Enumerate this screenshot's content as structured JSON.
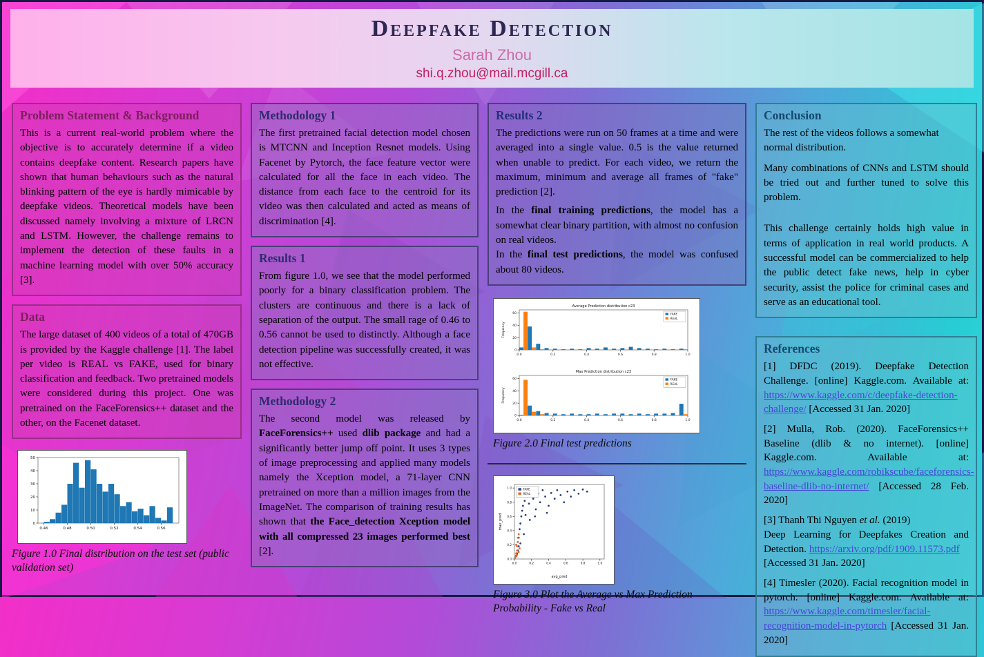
{
  "header": {
    "title": "Deepfake Detection",
    "author": "Sarah Zhou",
    "email": "shi.q.zhou@mail.mcgill.ca"
  },
  "panels": {
    "problem": {
      "title": "Problem Statement & Background",
      "body": "This is a current real-world problem where the objective is to accurately determine if a video contains deepfake content. Research papers have shown that human behaviours such as the natural blinking pattern of the eye is hardly mimicable by deepfake videos. Theoretical models have been discussed namely involving a mixture of LRCN and LSTM. However, the challenge remains to implement the detection of these faults in a machine learning model with over 50% accuracy [3]."
    },
    "data": {
      "title": "Data",
      "body": "The large dataset of 400 videos of a total of 470GB is provided by the Kaggle challenge [1]. The label per video is REAL vs FAKE, used for binary classification and feedback. Two pretrained models were considered during this project. One was pretrained on the FaceForensics++ dataset and the other, on the Facenet dataset."
    },
    "methodology1": {
      "title": "Methodology 1",
      "body": "The first pretrained facial detection model chosen is MTCNN and Inception Resnet models. Using Facenet by Pytorch, the face feature vector were calculated for all the face in each video. The distance from each face to the centroid for its video was then calculated and acted as means of discrimination [4]."
    },
    "results1": {
      "title": "Results 1",
      "body": "From figure 1.0, we see that the model performed poorly for a binary classification problem. The clusters are continuous and there is a lack of separation of the output. The small rage of 0.46 to 0.56 cannot be used to distinctly. Although a face detection pipeline was successfully created, it was not effective."
    },
    "methodology2": {
      "title": "Methodology 2",
      "segs": [
        {
          "t": "The second model was released by "
        },
        {
          "t": "FaceForensics++",
          "b": true
        },
        {
          "t": " used "
        },
        {
          "t": "dlib package",
          "b": true
        },
        {
          "t": " and had a significantly better jump off point. It uses 3 types of image preprocessing and applied many models namely the Xception model, a 71-layer CNN pretrained on more than a million images from the ImageNet. The comparison of training results has shown that "
        },
        {
          "t": "the Face_detection Xception model with all compressed 23 images performed best",
          "b": true
        },
        {
          "t": " [2]."
        }
      ]
    },
    "results2": {
      "title": "Results 2",
      "paras": [
        [
          {
            "t": "The predictions were run on 50 frames at a time and were averaged into a single value. 0.5 is the value returned when unable to predict. For each video, we return the maximum, minimum and average all frames of \"fake\" prediction [2]."
          }
        ],
        [
          {
            "t": "In the "
          },
          {
            "t": "final training predictions",
            "b": true
          },
          {
            "t": ", the model has a somewhat clear binary partition, with almost no confusion on real videos."
          }
        ],
        [
          {
            "t": "In the "
          },
          {
            "t": "final test predictions",
            "b": true
          },
          {
            "t": ", the model was confused about 80 videos."
          }
        ]
      ]
    },
    "conclusion": {
      "title": "Conclusion",
      "paras": [
        "The rest of the videos follows a somewhat normal distribution.",
        "Many combinations of CNNs and LSTM should be tried out and further tuned to solve this problem.",
        "This challenge certainly holds high value in terms of application in real world products. A successful model can be commercialized to help the public detect fake news, help in cyber security, assist the police for criminal cases and serve as an educational tool."
      ]
    },
    "references": {
      "title": "References",
      "items": [
        [
          {
            "t": "[1] DFDC (2019). Deepfake Detection Challenge. [online] Kaggle.com. Available at: "
          },
          {
            "t": "https://www.kaggle.com/c/deepfake-detection-challenge/",
            "link": true
          },
          {
            "t": " [Accessed 31 Jan. 2020]"
          }
        ],
        [
          {
            "t": "[2] Mulla, Rob. (2020). FaceForensics++ Baseline (dlib & no internet). [online] Kaggle.com. Available at: "
          },
          {
            "t": "https://www.kaggle.com/robikscube/faceforensics-baseline-dlib-no-internet/",
            "link": true
          },
          {
            "t": " [Accessed 28 Feb. 2020]"
          }
        ],
        [
          {
            "t": "[3] Thanh Thi Nguyen "
          },
          {
            "t": "et al.",
            "i": true
          },
          {
            "t": " (2019)"
          },
          {
            "br": true
          },
          {
            "t": "Deep Learning for Deepfakes Creation and Detection. "
          },
          {
            "t": "https://arxiv.org/pdf/1909.11573.pdf",
            "link": true
          },
          {
            "br": true
          },
          {
            "t": "[Accessed 31 Jan. 2020]"
          }
        ],
        [
          {
            "t": "[4] Timesler (2020). Facial recognition model in pytorch. [online] Kaggle.com. Available at: "
          },
          {
            "t": "https://www.kaggle.com/timesler/facial-recognition-model-in-pytorch",
            "link": true
          },
          {
            "t": " [Accessed 31 Jan. 2020]"
          }
        ]
      ]
    }
  },
  "figures": {
    "fig1": {
      "caption": "Figure 1.0 Final distribution on the test set (public validation set)"
    },
    "fig2": {
      "caption": "Figure 2.0 Final test predictions"
    },
    "fig3": {
      "caption": "Figure 3.0 Plot the Average vs Max Prediction Probability - Fake vs Real"
    }
  },
  "chart_data": [
    {
      "type": "bar",
      "title": "Final distribution on the test set",
      "x_start": 0.46,
      "bin_width": 0.005,
      "values": [
        1,
        3,
        8,
        14,
        30,
        46,
        27,
        48,
        41,
        30,
        24,
        30,
        22,
        13,
        16,
        9,
        11,
        6,
        13,
        4,
        2,
        12
      ],
      "xlim": [
        0.455,
        0.575
      ],
      "ylim": [
        0,
        50
      ],
      "xticks": [
        0.46,
        0.48,
        0.5,
        0.52,
        0.54,
        0.56
      ],
      "yticks": [
        0,
        10,
        20,
        30,
        40,
        50
      ],
      "color": "#1f77b4",
      "xlabel": "",
      "ylabel": ""
    },
    {
      "type": "histogram-pair",
      "legend": [
        "FAKE",
        "REAL"
      ],
      "subplots": [
        {
          "title": "Average Prediction distribution c23",
          "ylabel": "Frequency",
          "xlim": [
            0,
            1
          ],
          "ylim": [
            0,
            65
          ],
          "xticks": [
            0.0,
            0.2,
            0.4,
            0.6,
            0.8,
            1.0
          ],
          "yticks": [
            0,
            20,
            40,
            60
          ],
          "series": [
            {
              "name": "FAKE",
              "color": "#1f77b4",
              "values": [
                4,
                38,
                10,
                3,
                2,
                1,
                2,
                1,
                3,
                2,
                4,
                2,
                3,
                5,
                3,
                2,
                1,
                2,
                1,
                2
              ]
            },
            {
              "name": "REAL",
              "color": "#ff7f0e",
              "values": [
                62,
                4,
                1,
                0,
                0,
                0,
                0,
                0,
                0,
                0,
                0,
                0,
                0,
                0,
                0,
                0,
                0,
                0,
                0,
                1
              ]
            }
          ]
        },
        {
          "title": "Max Prediction distribution c23",
          "ylabel": "Frequency",
          "xlim": [
            0,
            1
          ],
          "ylim": [
            0,
            65
          ],
          "xticks": [
            0.0,
            0.2,
            0.4,
            0.6,
            0.8,
            1.0
          ],
          "yticks": [
            0,
            20,
            40,
            60
          ],
          "series": [
            {
              "name": "FAKE",
              "color": "#1f77b4",
              "values": [
                1,
                16,
                7,
                4,
                3,
                2,
                3,
                2,
                2,
                3,
                2,
                3,
                3,
                2,
                3,
                2,
                3,
                3,
                4,
                19
              ]
            },
            {
              "name": "REAL",
              "color": "#ff7f0e",
              "values": [
                58,
                6,
                2,
                0,
                0,
                0,
                0,
                0,
                0,
                0,
                0,
                0,
                0,
                0,
                0,
                0,
                0,
                0,
                0,
                2
              ]
            }
          ]
        }
      ]
    },
    {
      "type": "scatter",
      "title": "Average vs Max Prediction Probability",
      "xlabel": "avg_pred",
      "ylabel": "max_pred",
      "xlim": [
        0,
        1.05
      ],
      "ylim": [
        0,
        1.05
      ],
      "xticks": [
        0.0,
        0.2,
        0.4,
        0.6,
        0.8,
        1.0
      ],
      "yticks": [
        0.0,
        0.2,
        0.4,
        0.6,
        0.8,
        1.0
      ],
      "series": [
        {
          "name": "FAKE",
          "color": "#2a3f7e",
          "points": [
            [
              0.02,
              0.05
            ],
            [
              0.03,
              0.08
            ],
            [
              0.04,
              0.12
            ],
            [
              0.05,
              0.18
            ],
            [
              0.05,
              0.3
            ],
            [
              0.06,
              0.42
            ],
            [
              0.07,
              0.5
            ],
            [
              0.08,
              0.6
            ],
            [
              0.09,
              0.68
            ],
            [
              0.1,
              0.75
            ],
            [
              0.12,
              0.82
            ],
            [
              0.13,
              0.62
            ],
            [
              0.15,
              0.9
            ],
            [
              0.17,
              0.78
            ],
            [
              0.2,
              0.95
            ],
            [
              0.22,
              0.85
            ],
            [
              0.25,
              0.7
            ],
            [
              0.28,
              0.92
            ],
            [
              0.3,
              0.8
            ],
            [
              0.33,
              0.97
            ],
            [
              0.36,
              0.88
            ],
            [
              0.4,
              0.75
            ],
            [
              0.43,
              0.93
            ],
            [
              0.47,
              0.85
            ],
            [
              0.5,
              0.97
            ],
            [
              0.54,
              0.9
            ],
            [
              0.58,
              0.8
            ],
            [
              0.62,
              0.95
            ],
            [
              0.66,
              0.88
            ],
            [
              0.7,
              0.97
            ],
            [
              0.75,
              0.92
            ],
            [
              0.8,
              0.98
            ],
            [
              0.85,
              0.95
            ],
            [
              0.18,
              0.55
            ],
            [
              0.11,
              0.35
            ],
            [
              0.07,
              0.22
            ],
            [
              0.24,
              0.6
            ],
            [
              0.38,
              0.65
            ]
          ]
        },
        {
          "name": "REAL",
          "color": "#e8641e",
          "points": [
            [
              0.01,
              0.02
            ],
            [
              0.02,
              0.04
            ],
            [
              0.02,
              0.08
            ],
            [
              0.03,
              0.12
            ],
            [
              0.03,
              0.18
            ],
            [
              0.04,
              0.24
            ],
            [
              0.04,
              0.3
            ],
            [
              0.05,
              0.1
            ],
            [
              0.06,
              0.15
            ],
            [
              0.02,
              0.2
            ],
            [
              0.05,
              0.35
            ],
            [
              0.03,
              0.06
            ]
          ]
        }
      ]
    }
  ]
}
